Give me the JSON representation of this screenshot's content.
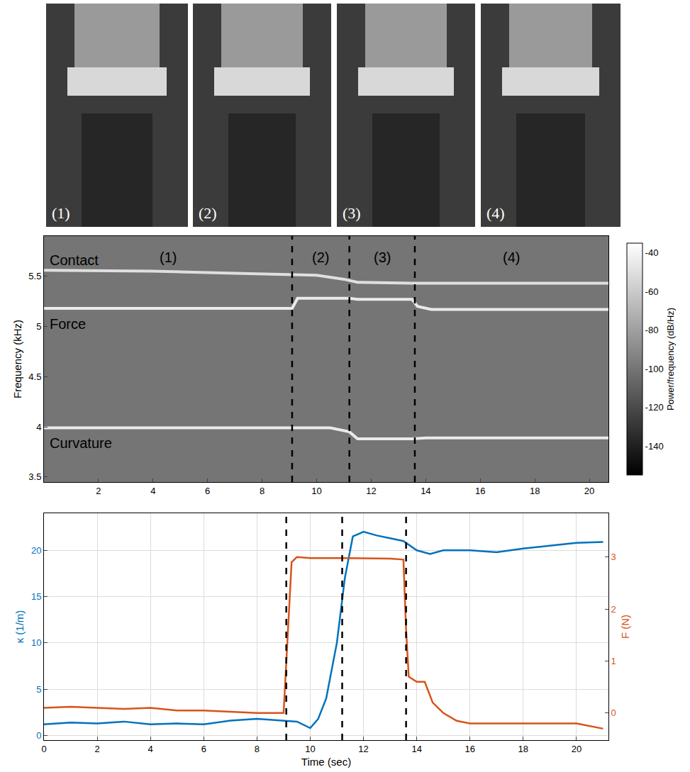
{
  "photos": {
    "labels": [
      "(1)",
      "(2)",
      "(3)",
      "(4)"
    ]
  },
  "chart_data": [
    {
      "type": "spectrogram",
      "ylabel": "Frequency (kHz)",
      "xlim": [
        0,
        20.7
      ],
      "xticks": [
        2,
        4,
        6,
        8,
        10,
        12,
        14,
        16,
        18,
        20
      ],
      "ylim": [
        3.45,
        5.9
      ],
      "yticks": [
        3.5,
        4,
        4.5,
        5,
        5.5
      ],
      "grid": false,
      "events": [
        9.1,
        11.2,
        13.6
      ],
      "phases": [
        "(1)",
        "(2)",
        "(3)",
        "(4)"
      ],
      "colorbar": {
        "title": "Power/frequency (dB/Hz)",
        "range": [
          -155,
          -35
        ],
        "ticks": [
          -140,
          -120,
          -100,
          -80,
          -60,
          -40
        ]
      },
      "series": [
        {
          "name": "Contact",
          "power": -50,
          "x": [
            0,
            4,
            7,
            9.1,
            10,
            11,
            11.5,
            13.5,
            14,
            20.7
          ],
          "values": [
            5.56,
            5.55,
            5.53,
            5.52,
            5.51,
            5.47,
            5.44,
            5.43,
            5.43,
            5.43
          ]
        },
        {
          "name": "Force",
          "power": -45,
          "x": [
            0,
            9.1,
            9.3,
            11.2,
            11.5,
            13.5,
            13.7,
            14.2,
            20.7
          ],
          "values": [
            5.18,
            5.18,
            5.28,
            5.28,
            5.27,
            5.27,
            5.2,
            5.17,
            5.17
          ]
        },
        {
          "name": "Curvature",
          "power": -45,
          "x": [
            0,
            9,
            10.5,
            11.2,
            11.5,
            13.5,
            14,
            20.7
          ],
          "values": [
            3.99,
            3.99,
            3.99,
            3.95,
            3.88,
            3.88,
            3.89,
            3.89
          ]
        }
      ]
    },
    {
      "type": "line",
      "xlabel": "Time (sec)",
      "ylabel": "κ (1/m)",
      "y2label": "F (N)",
      "xlim": [
        0,
        21.2
      ],
      "xticks": [
        0,
        2,
        4,
        6,
        8,
        10,
        12,
        14,
        16,
        18,
        20
      ],
      "ylim": [
        -0.5,
        24
      ],
      "yticks": [
        0,
        5,
        10,
        15,
        20
      ],
      "y2lim": [
        -0.52,
        3.84
      ],
      "y2ticks": [
        0,
        1,
        2,
        3
      ],
      "grid": true,
      "events": [
        9.1,
        11.2,
        13.6
      ],
      "series": [
        {
          "name": "κ",
          "color": "#0072bd",
          "x": [
            0,
            1,
            2,
            3,
            4,
            5,
            6,
            7,
            8,
            9,
            9.5,
            10,
            10.3,
            10.6,
            11,
            11.3,
            11.6,
            12,
            12.5,
            13,
            13.5,
            14,
            14.5,
            15,
            16,
            17,
            18,
            19,
            20,
            21
          ],
          "values": [
            1.2,
            1.4,
            1.3,
            1.5,
            1.2,
            1.3,
            1.2,
            1.6,
            1.8,
            1.6,
            1.5,
            0.8,
            1.8,
            4,
            10,
            17,
            21.5,
            22,
            21.6,
            21.3,
            21,
            20,
            19.6,
            20,
            20,
            19.8,
            20.2,
            20.5,
            20.8,
            20.9
          ]
        },
        {
          "name": "F",
          "color": "#d95319",
          "axis": "y2",
          "x": [
            0,
            1,
            2,
            3,
            4,
            5,
            6,
            7,
            8,
            9,
            9.15,
            9.3,
            9.5,
            10,
            11,
            12,
            13,
            13.5,
            13.6,
            13.7,
            14,
            14.3,
            14.6,
            15,
            15.5,
            16,
            17,
            18,
            19,
            20,
            21
          ],
          "values": [
            0.1,
            0.12,
            0.1,
            0.08,
            0.1,
            0.05,
            0.05,
            0.02,
            0,
            0,
            1.5,
            2.9,
            3,
            2.98,
            2.98,
            2.98,
            2.97,
            2.95,
            1.6,
            0.7,
            0.6,
            0.6,
            0.2,
            0,
            -0.15,
            -0.2,
            -0.2,
            -0.2,
            -0.2,
            -0.2,
            -0.3
          ]
        }
      ]
    }
  ]
}
